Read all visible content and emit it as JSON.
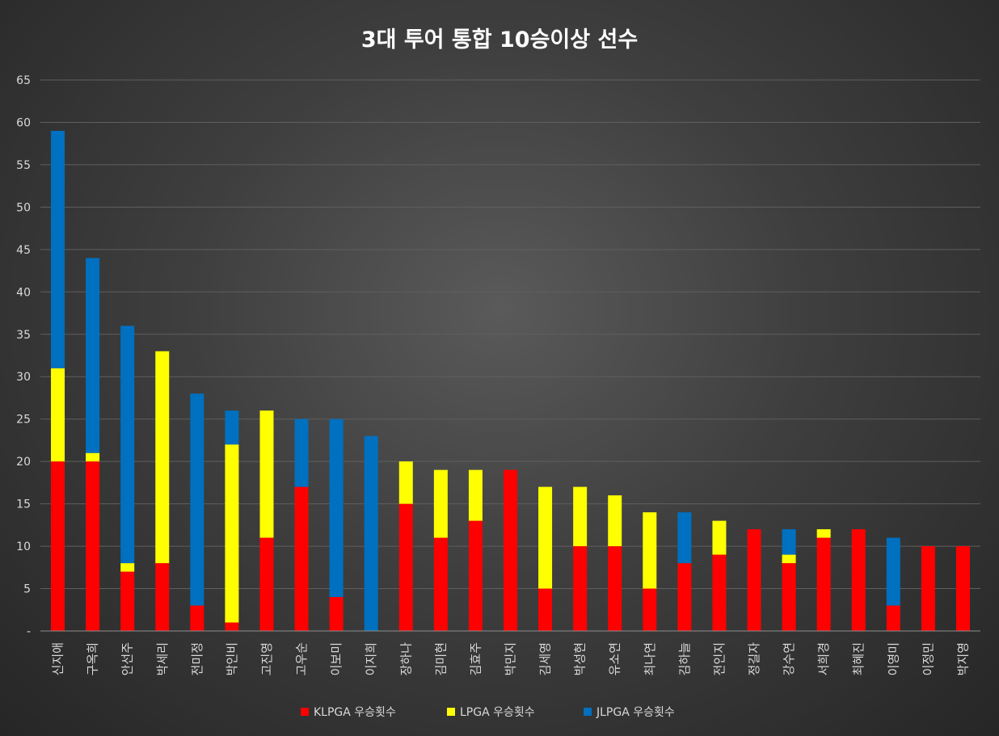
{
  "chart_data": {
    "type": "bar",
    "stacked": true,
    "title": "3대 투어 통합 10승이상 선수",
    "xlabel": "",
    "ylabel": "",
    "ylim": [
      0,
      65
    ],
    "y_ticks": [
      0,
      5,
      10,
      15,
      20,
      25,
      30,
      35,
      40,
      45,
      50,
      55,
      60,
      65
    ],
    "y_tick_labels": [
      "-",
      "5",
      "10",
      "15",
      "20",
      "25",
      "30",
      "35",
      "40",
      "45",
      "50",
      "55",
      "60",
      "65"
    ],
    "grid": true,
    "legend_position": "bottom",
    "categories": [
      "신지애",
      "구옥희",
      "안선주",
      "박세리",
      "전미정",
      "박인비",
      "고진영",
      "고우순",
      "이보미",
      "이지희",
      "장하나",
      "김미현",
      "김효주",
      "박민지",
      "김세영",
      "박성현",
      "유소연",
      "최나연",
      "김하늘",
      "전인지",
      "정길자",
      "강수연",
      "서희경",
      "최혜진",
      "이영미",
      "이정민",
      "박지영"
    ],
    "series": [
      {
        "name": "KLPGA 우승횟수",
        "color": "#ff0000",
        "values": [
          20,
          20,
          7,
          8,
          3,
          1,
          11,
          17,
          4,
          0,
          15,
          11,
          13,
          19,
          5,
          10,
          10,
          5,
          8,
          9,
          12,
          8,
          11,
          12,
          3,
          10,
          10
        ]
      },
      {
        "name": "LPGA 우승횟수",
        "color": "#ffff00",
        "values": [
          11,
          1,
          1,
          25,
          0,
          21,
          15,
          0,
          0,
          0,
          5,
          8,
          6,
          0,
          12,
          7,
          6,
          9,
          0,
          4,
          0,
          1,
          1,
          0,
          0,
          0,
          0
        ]
      },
      {
        "name": "JLPGA 우승횟수",
        "color": "#0070c0",
        "values": [
          28,
          23,
          28,
          0,
          25,
          4,
          0,
          8,
          21,
          23,
          0,
          0,
          0,
          0,
          0,
          0,
          0,
          0,
          6,
          0,
          0,
          3,
          0,
          0,
          8,
          0,
          0
        ]
      }
    ]
  }
}
